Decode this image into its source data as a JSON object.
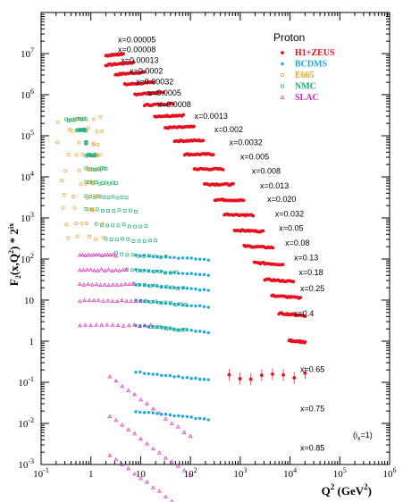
{
  "chart_data": {
    "type": "scatter",
    "title": "",
    "xlabel_main": "Q",
    "xlabel_sup": "2",
    "xlabel_unit": " (GeV",
    "xlabel_unit_sup": "2",
    "xlabel_close": ")",
    "ylabel": "F2(x,Q2) * 2^ix",
    "xscale": "log",
    "yscale": "log",
    "xlim": [
      0.1,
      1000000
    ],
    "ylim": [
      0.001,
      100000000
    ],
    "xticks": [
      {
        "base": "10",
        "exp": "-1"
      },
      {
        "base": "1",
        "exp": ""
      },
      {
        "base": "10",
        "exp": ""
      },
      {
        "base": "10",
        "exp": "2"
      },
      {
        "base": "10",
        "exp": "3"
      },
      {
        "base": "10",
        "exp": "4"
      },
      {
        "base": "10",
        "exp": "5"
      },
      {
        "base": "10",
        "exp": "6"
      }
    ],
    "yticks": [
      {
        "base": "10",
        "exp": "-3"
      },
      {
        "base": "10",
        "exp": "-2"
      },
      {
        "base": "10",
        "exp": "-1"
      },
      {
        "base": "1",
        "exp": ""
      },
      {
        "base": "10",
        "exp": ""
      },
      {
        "base": "10",
        "exp": "2"
      },
      {
        "base": "10",
        "exp": "3"
      },
      {
        "base": "10",
        "exp": "4"
      },
      {
        "base": "10",
        "exp": "5"
      },
      {
        "base": "10",
        "exp": "6"
      },
      {
        "base": "10",
        "exp": "7"
      }
    ],
    "legend": {
      "title": "Proton",
      "placement": "top-right",
      "entries": [
        {
          "name": "H1+ZEUS",
          "color": "#e8101e",
          "marker": "filled-circle"
        },
        {
          "name": "BCDMS",
          "color": "#19a8e0",
          "marker": "open-cross"
        },
        {
          "name": "E665",
          "color": "#f0a020",
          "marker": "open-circle"
        },
        {
          "name": "NMC",
          "color": "#18b070",
          "marker": "open-square"
        },
        {
          "name": "SLAC",
          "color": "#d828b8",
          "marker": "open-triangle"
        }
      ]
    },
    "note": "(i",
    "note_sub": "x",
    "note_end": "=1)",
    "bins": [
      {
        "label": "x=0.00005",
        "ix": 24,
        "F2": 0.65,
        "label_q2": 3.5
      },
      {
        "label": "x=0.00008",
        "ix": 23,
        "F2": 0.75,
        "label_q2": 3.5
      },
      {
        "label": "x=0.00013",
        "ix": 22,
        "F2": 0.83,
        "label_q2": 4
      },
      {
        "label": "x=0.0002",
        "ix": 21,
        "F2": 0.9,
        "label_q2": 6
      },
      {
        "label": "x=0.00032",
        "ix": 20,
        "F2": 1.0,
        "label_q2": 8
      },
      {
        "label": "x=0.0005",
        "ix": 19,
        "F2": 1.05,
        "label_q2": 14
      },
      {
        "label": "x=0.0008",
        "ix": 18,
        "F2": 1.1,
        "label_q2": 22
      },
      {
        "label": "x=0.0013",
        "ix": 17,
        "F2": 1.15,
        "label_q2": 120
      },
      {
        "label": "x=0.002",
        "ix": 16,
        "F2": 1.1,
        "label_q2": 300
      },
      {
        "label": "x=0.0032",
        "ix": 15,
        "F2": 1.05,
        "label_q2": 600
      },
      {
        "label": "x=0.005",
        "ix": 14,
        "F2": 0.95,
        "label_q2": 1000
      },
      {
        "label": "x=0.008",
        "ix": 13,
        "F2": 0.85,
        "label_q2": 1700
      },
      {
        "label": "x=0.013",
        "ix": 12,
        "F2": 0.75,
        "label_q2": 2500
      },
      {
        "label": "x=0.020",
        "ix": 11,
        "F2": 0.7,
        "label_q2": 3500
      },
      {
        "label": "x=0.032",
        "ix": 10,
        "F2": 0.62,
        "label_q2": 5000
      },
      {
        "label": "x=0.05",
        "ix": 9,
        "F2": 0.55,
        "label_q2": 6000
      },
      {
        "label": "x=0.08",
        "ix": 8,
        "F2": 0.48,
        "label_q2": 8000
      },
      {
        "label": "x=0.13",
        "ix": 7,
        "F2": 0.42,
        "label_q2": 12000
      },
      {
        "label": "x=0.18",
        "ix": 6,
        "F2": 0.37,
        "label_q2": 15000
      },
      {
        "label": "x=0.25",
        "ix": 5,
        "F2": 0.3,
        "label_q2": 16000
      },
      {
        "label": "x=0.4",
        "ix": 4,
        "F2": 0.15,
        "label_q2": 12000
      },
      {
        "label": "x=0.65",
        "ix": 3,
        "F2": 0.018,
        "label_q2": 16000
      },
      {
        "label": "x=0.75",
        "ix": 2,
        "F2": 0.004,
        "label_q2": 16000
      },
      {
        "label": "x=0.85",
        "ix": 1,
        "F2": 0.0009,
        "label_q2": 16000
      }
    ]
  }
}
